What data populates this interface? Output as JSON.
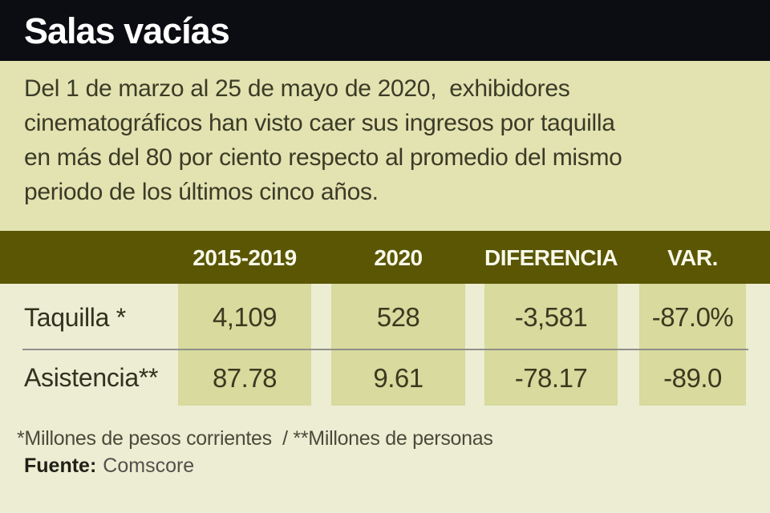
{
  "header": {
    "title": "Salas vacías"
  },
  "intro": {
    "lines": [
      "Del 1 de marzo al 25 de mayo de 2020,  exhibidores",
      "cinematográficos han visto caer sus ingresos por taquilla",
      "en más del 80 por ciento respecto al promedio del mismo",
      "periodo de los últimos cinco años."
    ]
  },
  "table": {
    "columns": [
      "2015-2019",
      "2020",
      "DIFERENCIA",
      "VAR."
    ],
    "rows": [
      {
        "label": "Taquilla *",
        "values": [
          "4,109",
          "528",
          "-3,581",
          "-87.0%"
        ]
      },
      {
        "label": "Asistencia**",
        "values": [
          "87.78",
          "9.61",
          "-78.17",
          "-89.0"
        ]
      }
    ]
  },
  "footer": {
    "note": "*Millones de pesos corrientes  / **Millones de personas",
    "source_label": "Fuente:",
    "source_value": "Comscore"
  },
  "colors": {
    "titlebar_bg": "#0c0c13",
    "intro_bg": "#e2e3b1",
    "band_bg": "#5a5604",
    "body_bg": "#ecedd3",
    "cell_bg": "#d8da9e",
    "text_dark": "#32321f",
    "header_text": "#f8f8ea"
  },
  "chart_data": {
    "type": "table",
    "title": "Salas vacías",
    "subtitle": "Del 1 de marzo al 25 de mayo de 2020, exhibidores cinematográficos han visto caer sus ingresos por taquilla en más del 80 por ciento respecto al promedio del mismo periodo de los últimos cinco años.",
    "columns": [
      "2015-2019",
      "2020",
      "DIFERENCIA",
      "VAR."
    ],
    "rows": [
      {
        "label": "Taquilla *",
        "unit": "millones de pesos corrientes",
        "values": [
          4109,
          528,
          -3581
        ],
        "variation_pct": -87.0
      },
      {
        "label": "Asistencia**",
        "unit": "millones de personas",
        "values": [
          87.78,
          9.61,
          -78.17
        ],
        "variation_pct": -89.0
      }
    ],
    "source": "Comscore"
  }
}
